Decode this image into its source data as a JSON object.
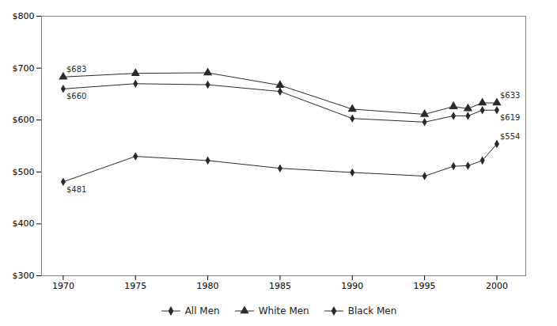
{
  "chart_data": {
    "type": "line",
    "x": [
      1970,
      1975,
      1980,
      1985,
      1990,
      1995,
      1997,
      1998,
      1999,
      2000
    ],
    "series": [
      {
        "name": "All Men",
        "marker": "diamond",
        "values": [
          660,
          670,
          668,
          655,
          603,
          596,
          608,
          608,
          619,
          619
        ]
      },
      {
        "name": "White Men",
        "marker": "triangle",
        "values": [
          683,
          690,
          691,
          667,
          621,
          611,
          626,
          622,
          633,
          633
        ]
      },
      {
        "name": "Black Men",
        "marker": "diamond",
        "values": [
          481,
          530,
          522,
          507,
          499,
          492,
          511,
          512,
          522,
          554
        ]
      }
    ],
    "color": "#2a2a2a",
    "annotations": [
      {
        "text": "$683",
        "x": 1970,
        "y": 683,
        "position": "above"
      },
      {
        "text": "$660",
        "x": 1970,
        "y": 660,
        "position": "below"
      },
      {
        "text": "$481",
        "x": 1970,
        "y": 481,
        "position": "below"
      },
      {
        "text": "$633",
        "x": 2000,
        "y": 633,
        "position": "above"
      },
      {
        "text": "$619",
        "x": 2000,
        "y": 619,
        "position": "below"
      },
      {
        "text": "$554",
        "x": 2000,
        "y": 554,
        "position": "above"
      }
    ],
    "xlim": [
      1968.5,
      2002
    ],
    "xticks": [
      1970,
      1975,
      1980,
      1985,
      1990,
      1995,
      2000
    ],
    "ylim": [
      300,
      800
    ],
    "yticks": [
      {
        "value": 300,
        "label": "$300"
      },
      {
        "value": 400,
        "label": "$400"
      },
      {
        "value": 500,
        "label": "$500"
      },
      {
        "value": 600,
        "label": "$600"
      },
      {
        "value": 700,
        "label": "$700"
      },
      {
        "value": 800,
        "label": "$800"
      }
    ],
    "grid": false,
    "legend": "bottom"
  }
}
